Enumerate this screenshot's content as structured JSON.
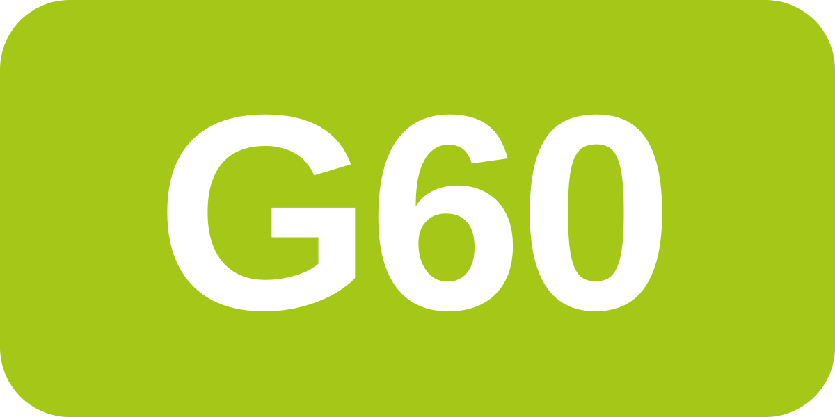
{
  "badge": {
    "label": "G60",
    "background_color": "#a5c718",
    "text_color": "#ffffff"
  }
}
